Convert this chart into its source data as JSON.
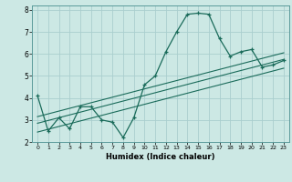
{
  "title": "",
  "xlabel": "Humidex (Indice chaleur)",
  "bg_color": "#cce8e4",
  "grid_color": "#aacece",
  "line_color": "#1a6b5a",
  "xlim": [
    -0.5,
    23.5
  ],
  "ylim": [
    2,
    8.2
  ],
  "xticks": [
    0,
    1,
    2,
    3,
    4,
    5,
    6,
    7,
    8,
    9,
    10,
    11,
    12,
    13,
    14,
    15,
    16,
    17,
    18,
    19,
    20,
    21,
    22,
    23
  ],
  "yticks": [
    2,
    3,
    4,
    5,
    6,
    7,
    8
  ],
  "main_x": [
    0,
    1,
    2,
    3,
    4,
    5,
    6,
    7,
    8,
    9,
    10,
    11,
    12,
    13,
    14,
    15,
    16,
    17,
    18,
    19,
    20,
    21,
    22,
    23
  ],
  "main_y": [
    4.1,
    2.5,
    3.1,
    2.6,
    3.6,
    3.6,
    3.0,
    2.9,
    2.2,
    3.1,
    4.6,
    5.0,
    6.1,
    7.0,
    7.8,
    7.85,
    7.8,
    6.7,
    5.9,
    6.1,
    6.2,
    5.4,
    5.5,
    5.7
  ],
  "trend1_x": [
    0,
    23
  ],
  "trend1_y": [
    2.85,
    5.75
  ],
  "trend2_x": [
    0,
    23
  ],
  "trend2_y": [
    3.15,
    6.05
  ],
  "trend3_x": [
    0,
    23
  ],
  "trend3_y": [
    2.45,
    5.35
  ]
}
